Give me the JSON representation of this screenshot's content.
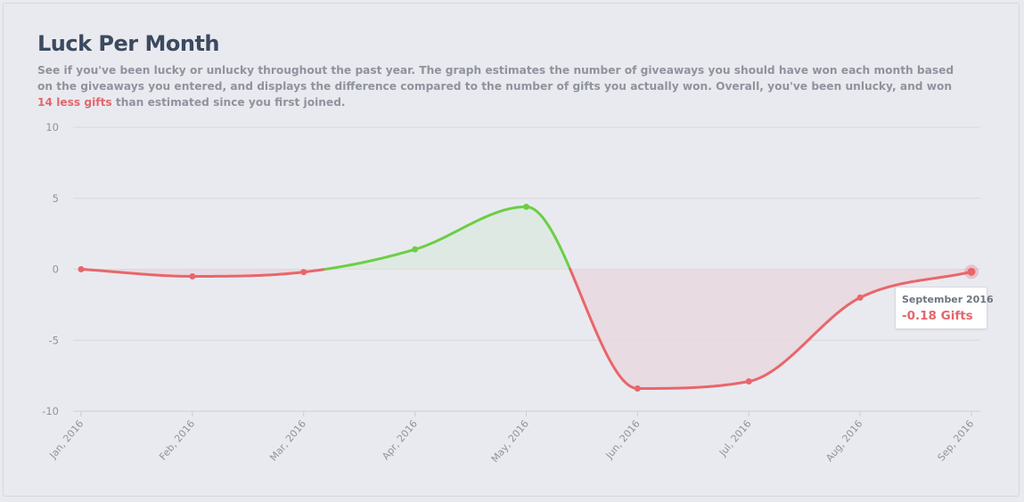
{
  "header": {
    "title": "Luck Per Month",
    "desc_part1": "See if you've been lucky or unlucky throughout the past year. The graph estimates the number of giveaways you should have won each month based on the giveaways you entered, and displays the difference compared to the number of gifts you actually won. Overall, you've been unlucky, and won ",
    "desc_highlight": "14 less gifts",
    "desc_part2": " than estimated since you first joined."
  },
  "tooltip": {
    "date": "September 2016",
    "value": "-0.18 Gifts"
  },
  "colors": {
    "positive": "#6cce45",
    "negative": "#e8666b",
    "positive_fill": "#dde9e2",
    "negative_fill": "#e8d9df",
    "grid": "#d6d8e0",
    "axis": "#c4d0e0",
    "text": "#8f939e",
    "title": "#3c4a60"
  },
  "chart_data": {
    "type": "area",
    "categories": [
      "Jan, 2016",
      "Feb, 2016",
      "Mar, 2016",
      "Apr, 2016",
      "May, 2016",
      "Jun, 2016",
      "Jul, 2016",
      "Aug, 2016",
      "Sep, 2016"
    ],
    "values": [
      0,
      -0.5,
      -0.2,
      1.4,
      4.4,
      -8.4,
      -7.9,
      -2.0,
      -0.18
    ],
    "yticks": [
      "10",
      "5",
      "0",
      "-5",
      "-10"
    ],
    "ylim": [
      -10,
      10
    ],
    "grid": true,
    "smooth": true,
    "colors": "positive green, negative red"
  }
}
